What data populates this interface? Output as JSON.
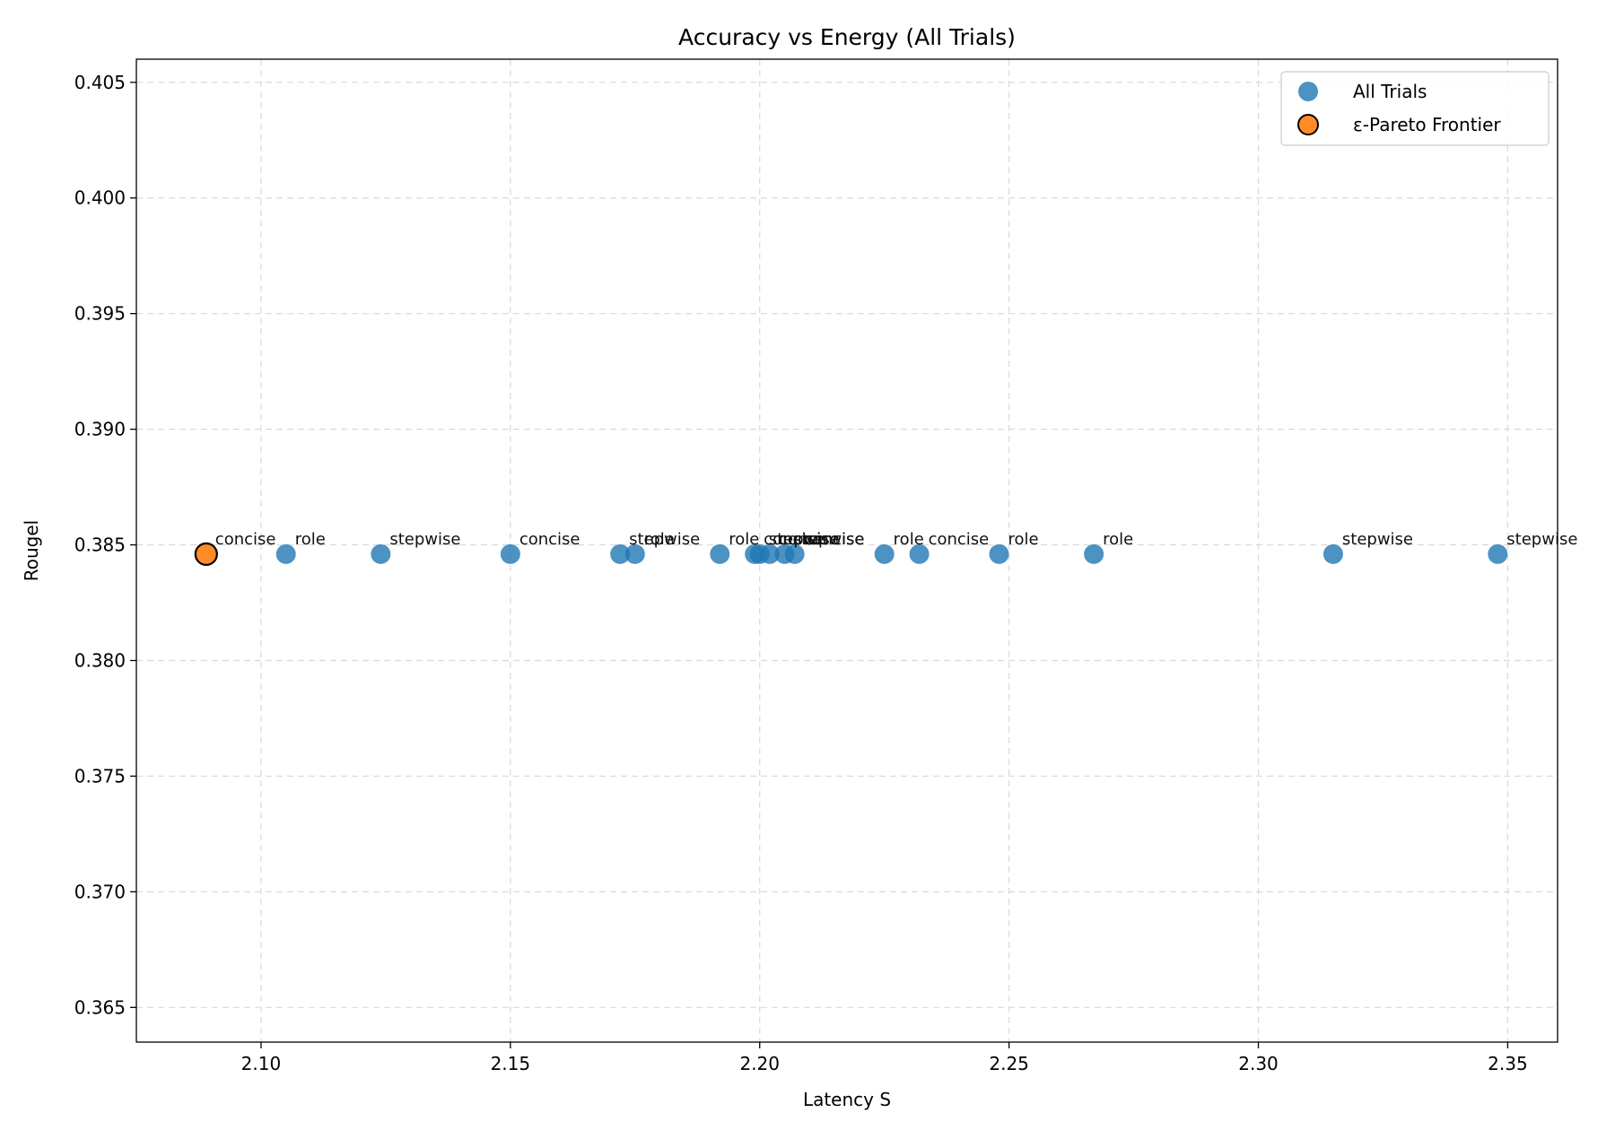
{
  "chart_data": {
    "type": "scatter",
    "title": "Accuracy vs Energy (All Trials)",
    "xlabel": "Latency S",
    "ylabel": "Rougel",
    "xlim": [
      2.075,
      2.36
    ],
    "ylim": [
      0.3635,
      0.406
    ],
    "x_ticks": [
      "2.10",
      "2.15",
      "2.20",
      "2.25",
      "2.30",
      "2.35"
    ],
    "x_tick_values": [
      2.1,
      2.15,
      2.2,
      2.25,
      2.3,
      2.35
    ],
    "y_ticks": [
      "0.365",
      "0.370",
      "0.375",
      "0.380",
      "0.385",
      "0.390",
      "0.395",
      "0.400",
      "0.405"
    ],
    "y_tick_values": [
      0.365,
      0.37,
      0.375,
      0.38,
      0.385,
      0.39,
      0.395,
      0.4,
      0.405
    ],
    "grid": true,
    "legend_position": "top-right",
    "series": [
      {
        "name": "All Trials",
        "color": "#1f77b4",
        "points": [
          {
            "x": 2.105,
            "y": 0.3846,
            "label": "role"
          },
          {
            "x": 2.124,
            "y": 0.3846,
            "label": "stepwise"
          },
          {
            "x": 2.15,
            "y": 0.3846,
            "label": "concise"
          },
          {
            "x": 2.172,
            "y": 0.3846,
            "label": "stepwise"
          },
          {
            "x": 2.175,
            "y": 0.3846,
            "label": "role"
          },
          {
            "x": 2.192,
            "y": 0.3846,
            "label": "role"
          },
          {
            "x": 2.199,
            "y": 0.3846,
            "label": "concise"
          },
          {
            "x": 2.2,
            "y": 0.3846,
            "label": "stepwise"
          },
          {
            "x": 2.202,
            "y": 0.3846,
            "label": "concise"
          },
          {
            "x": 2.205,
            "y": 0.3846,
            "label": "stepwise"
          },
          {
            "x": 2.207,
            "y": 0.3846,
            "label": "concise"
          },
          {
            "x": 2.225,
            "y": 0.3846,
            "label": "role"
          },
          {
            "x": 2.232,
            "y": 0.3846,
            "label": "concise"
          },
          {
            "x": 2.248,
            "y": 0.3846,
            "label": "role"
          },
          {
            "x": 2.267,
            "y": 0.3846,
            "label": "role"
          },
          {
            "x": 2.315,
            "y": 0.3846,
            "label": "stepwise"
          },
          {
            "x": 2.348,
            "y": 0.3846,
            "label": "stepwise"
          }
        ]
      },
      {
        "name": "ε-Pareto Frontier",
        "color": "#ff7f0e",
        "points": [
          {
            "x": 2.089,
            "y": 0.3846,
            "label": "concise"
          }
        ]
      }
    ]
  }
}
